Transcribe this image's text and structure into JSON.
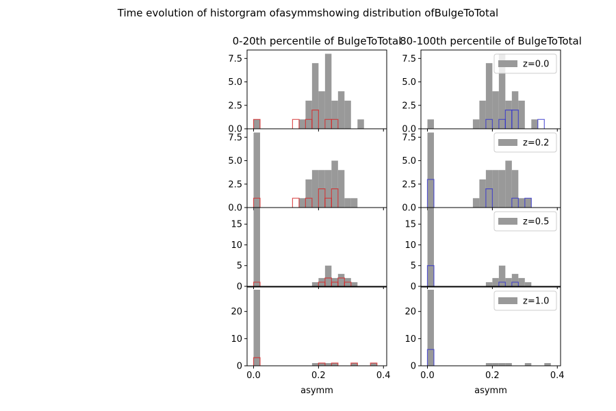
{
  "figure": {
    "suptitle": "Time evolution of historgram ofasymmshowing distribution ofBulgeToTotal",
    "xlabel": "asymm"
  },
  "colors": {
    "all_hist": "#999999",
    "low_step": "#d62728",
    "high_step": "#3333cc",
    "axes": "#000000",
    "background": "#ffffff"
  },
  "chart_data": {
    "type": "bar",
    "bin_width": 0.02,
    "xlim": [
      -0.02,
      0.41
    ],
    "xticks": [
      0.0,
      0.2,
      0.4
    ],
    "xtick_labels": [
      "0.0",
      "0.2",
      "0.4"
    ],
    "xlabel": "asymm",
    "column_titles": [
      "0-20th percentile of BulgeToTotal",
      "80-100th percentile of BulgeToTotal"
    ],
    "legend_placement": "upper right",
    "rows": [
      {
        "label": "z=0.0",
        "ylim": [
          0,
          8.4
        ],
        "yticks": [
          0,
          2.5,
          5.0,
          7.5
        ],
        "ytick_labels": [
          "0.0",
          "2.5",
          "5.0",
          "7.5"
        ],
        "all_bins": [
          {
            "x": 0.0,
            "v": 1
          },
          {
            "x": 0.14,
            "v": 1
          },
          {
            "x": 0.16,
            "v": 3
          },
          {
            "x": 0.18,
            "v": 7
          },
          {
            "x": 0.2,
            "v": 4
          },
          {
            "x": 0.22,
            "v": 8
          },
          {
            "x": 0.24,
            "v": 3
          },
          {
            "x": 0.26,
            "v": 4
          },
          {
            "x": 0.28,
            "v": 3
          },
          {
            "x": 0.32,
            "v": 1
          }
        ],
        "low": [
          {
            "x": 0.0,
            "v": 1
          },
          {
            "x": 0.12,
            "v": 1
          },
          {
            "x": 0.16,
            "v": 1
          },
          {
            "x": 0.18,
            "v": 2
          },
          {
            "x": 0.2,
            "v": 0
          },
          {
            "x": 0.22,
            "v": 1
          },
          {
            "x": 0.24,
            "v": 1
          }
        ],
        "high": [
          {
            "x": 0.18,
            "v": 1
          },
          {
            "x": 0.2,
            "v": 0
          },
          {
            "x": 0.22,
            "v": 1
          },
          {
            "x": 0.24,
            "v": 2
          },
          {
            "x": 0.26,
            "v": 2
          },
          {
            "x": 0.34,
            "v": 1
          }
        ]
      },
      {
        "label": "z=0.2",
        "ylim": [
          0,
          8.4
        ],
        "yticks": [
          0,
          2.5,
          5.0,
          7.5
        ],
        "ytick_labels": [
          "0.0",
          "2.5",
          "5.0",
          "7.5"
        ],
        "all_bins": [
          {
            "x": 0.0,
            "v": 8
          },
          {
            "x": 0.14,
            "v": 1
          },
          {
            "x": 0.16,
            "v": 3
          },
          {
            "x": 0.18,
            "v": 4
          },
          {
            "x": 0.2,
            "v": 4
          },
          {
            "x": 0.22,
            "v": 4
          },
          {
            "x": 0.24,
            "v": 5
          },
          {
            "x": 0.26,
            "v": 4
          },
          {
            "x": 0.28,
            "v": 1
          },
          {
            "x": 0.3,
            "v": 1
          }
        ],
        "low": [
          {
            "x": 0.0,
            "v": 1
          },
          {
            "x": 0.12,
            "v": 1
          },
          {
            "x": 0.16,
            "v": 1
          },
          {
            "x": 0.2,
            "v": 2
          },
          {
            "x": 0.22,
            "v": 1
          },
          {
            "x": 0.24,
            "v": 2
          }
        ],
        "high": [
          {
            "x": 0.0,
            "v": 3
          },
          {
            "x": 0.18,
            "v": 2
          },
          {
            "x": 0.26,
            "v": 1
          },
          {
            "x": 0.28,
            "v": 0
          },
          {
            "x": 0.3,
            "v": 1
          }
        ]
      },
      {
        "label": "z=0.5",
        "ylim": [
          0,
          19
        ],
        "yticks": [
          0,
          5,
          10,
          15
        ],
        "ytick_labels": [
          "0",
          "5",
          "10",
          "15"
        ],
        "all_bins": [
          {
            "x": 0.0,
            "v": 19
          },
          {
            "x": 0.18,
            "v": 1
          },
          {
            "x": 0.2,
            "v": 2
          },
          {
            "x": 0.22,
            "v": 5
          },
          {
            "x": 0.24,
            "v": 2
          },
          {
            "x": 0.26,
            "v": 3
          },
          {
            "x": 0.28,
            "v": 2
          },
          {
            "x": 0.3,
            "v": 1
          }
        ],
        "low": [
          {
            "x": 0.0,
            "v": 1
          },
          {
            "x": 0.2,
            "v": 1
          },
          {
            "x": 0.22,
            "v": 2
          },
          {
            "x": 0.24,
            "v": 1
          },
          {
            "x": 0.26,
            "v": 2
          },
          {
            "x": 0.28,
            "v": 1
          }
        ],
        "high": [
          {
            "x": 0.0,
            "v": 5
          },
          {
            "x": 0.22,
            "v": 1
          },
          {
            "x": 0.26,
            "v": 1
          }
        ]
      },
      {
        "label": "z=1.0",
        "ylim": [
          0,
          29
        ],
        "yticks": [
          0,
          10,
          20
        ],
        "ytick_labels": [
          "0",
          "10",
          "20"
        ],
        "all_bins": [
          {
            "x": 0.0,
            "v": 28
          },
          {
            "x": 0.18,
            "v": 1
          },
          {
            "x": 0.2,
            "v": 1
          },
          {
            "x": 0.22,
            "v": 1
          },
          {
            "x": 0.24,
            "v": 1
          },
          {
            "x": 0.3,
            "v": 1
          },
          {
            "x": 0.36,
            "v": 1
          }
        ],
        "low": [
          {
            "x": 0.0,
            "v": 3
          },
          {
            "x": 0.2,
            "v": 1
          },
          {
            "x": 0.24,
            "v": 1
          },
          {
            "x": 0.3,
            "v": 1
          },
          {
            "x": 0.36,
            "v": 1
          }
        ],
        "high": [
          {
            "x": 0.0,
            "v": 6
          }
        ]
      }
    ]
  }
}
